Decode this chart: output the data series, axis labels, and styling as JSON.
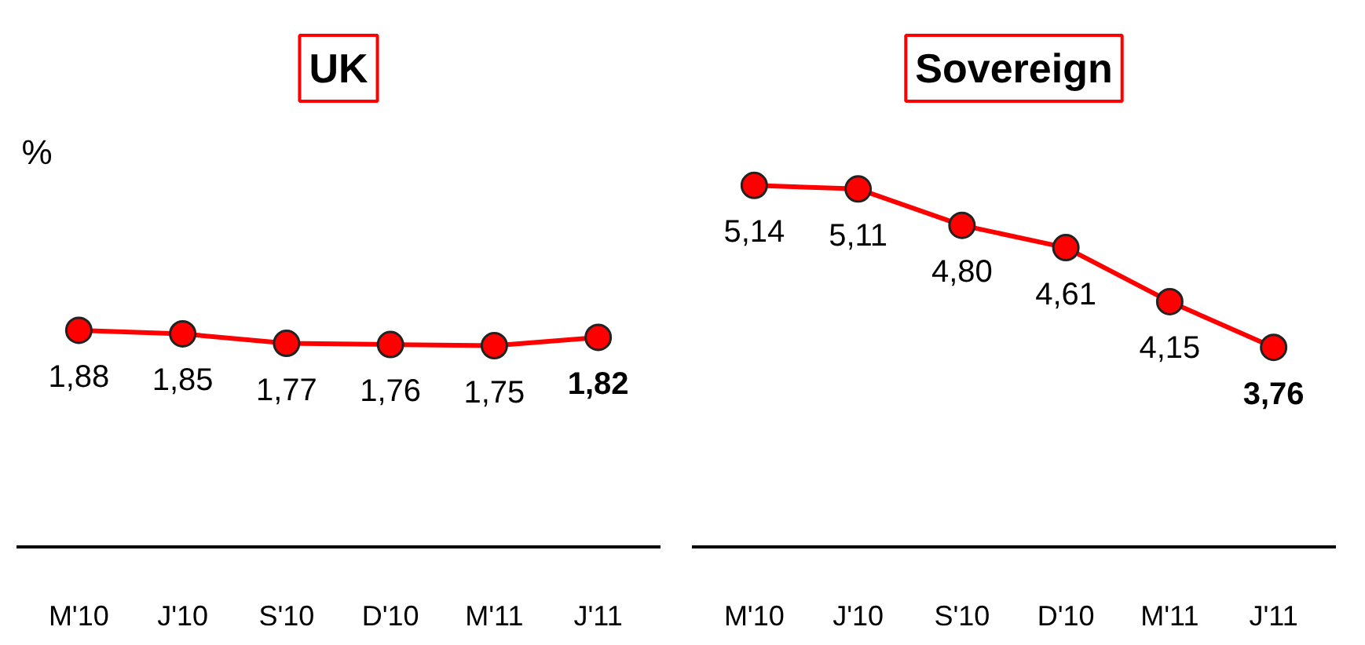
{
  "chart_data": [
    {
      "type": "line",
      "title": "UK",
      "ylabel": "%",
      "categories": [
        "M'10",
        "J'10",
        "S'10",
        "D'10",
        "M'11",
        "J'11"
      ],
      "series": [
        {
          "color": "#ff0000",
          "values": [
            1.88,
            1.85,
            1.77,
            1.76,
            1.75,
            1.82
          ],
          "value_labels": [
            "1,88",
            "1,85",
            "1,77",
            "1,76",
            "1,75",
            "1,82"
          ]
        }
      ],
      "tick_labels": "x",
      "marker": "circle"
    },
    {
      "type": "line",
      "title": "Sovereign",
      "categories": [
        "M'10",
        "J'10",
        "S'10",
        "D'10",
        "M'11",
        "J'11"
      ],
      "series": [
        {
          "color": "#ff0000",
          "values": [
            5.14,
            5.11,
            4.8,
            4.61,
            4.15,
            3.76
          ],
          "value_labels": [
            "5,14",
            "5,11",
            "4,80",
            "4,61",
            "4,15",
            "3,76"
          ]
        }
      ],
      "tick_labels": "x",
      "marker": "circle"
    }
  ]
}
